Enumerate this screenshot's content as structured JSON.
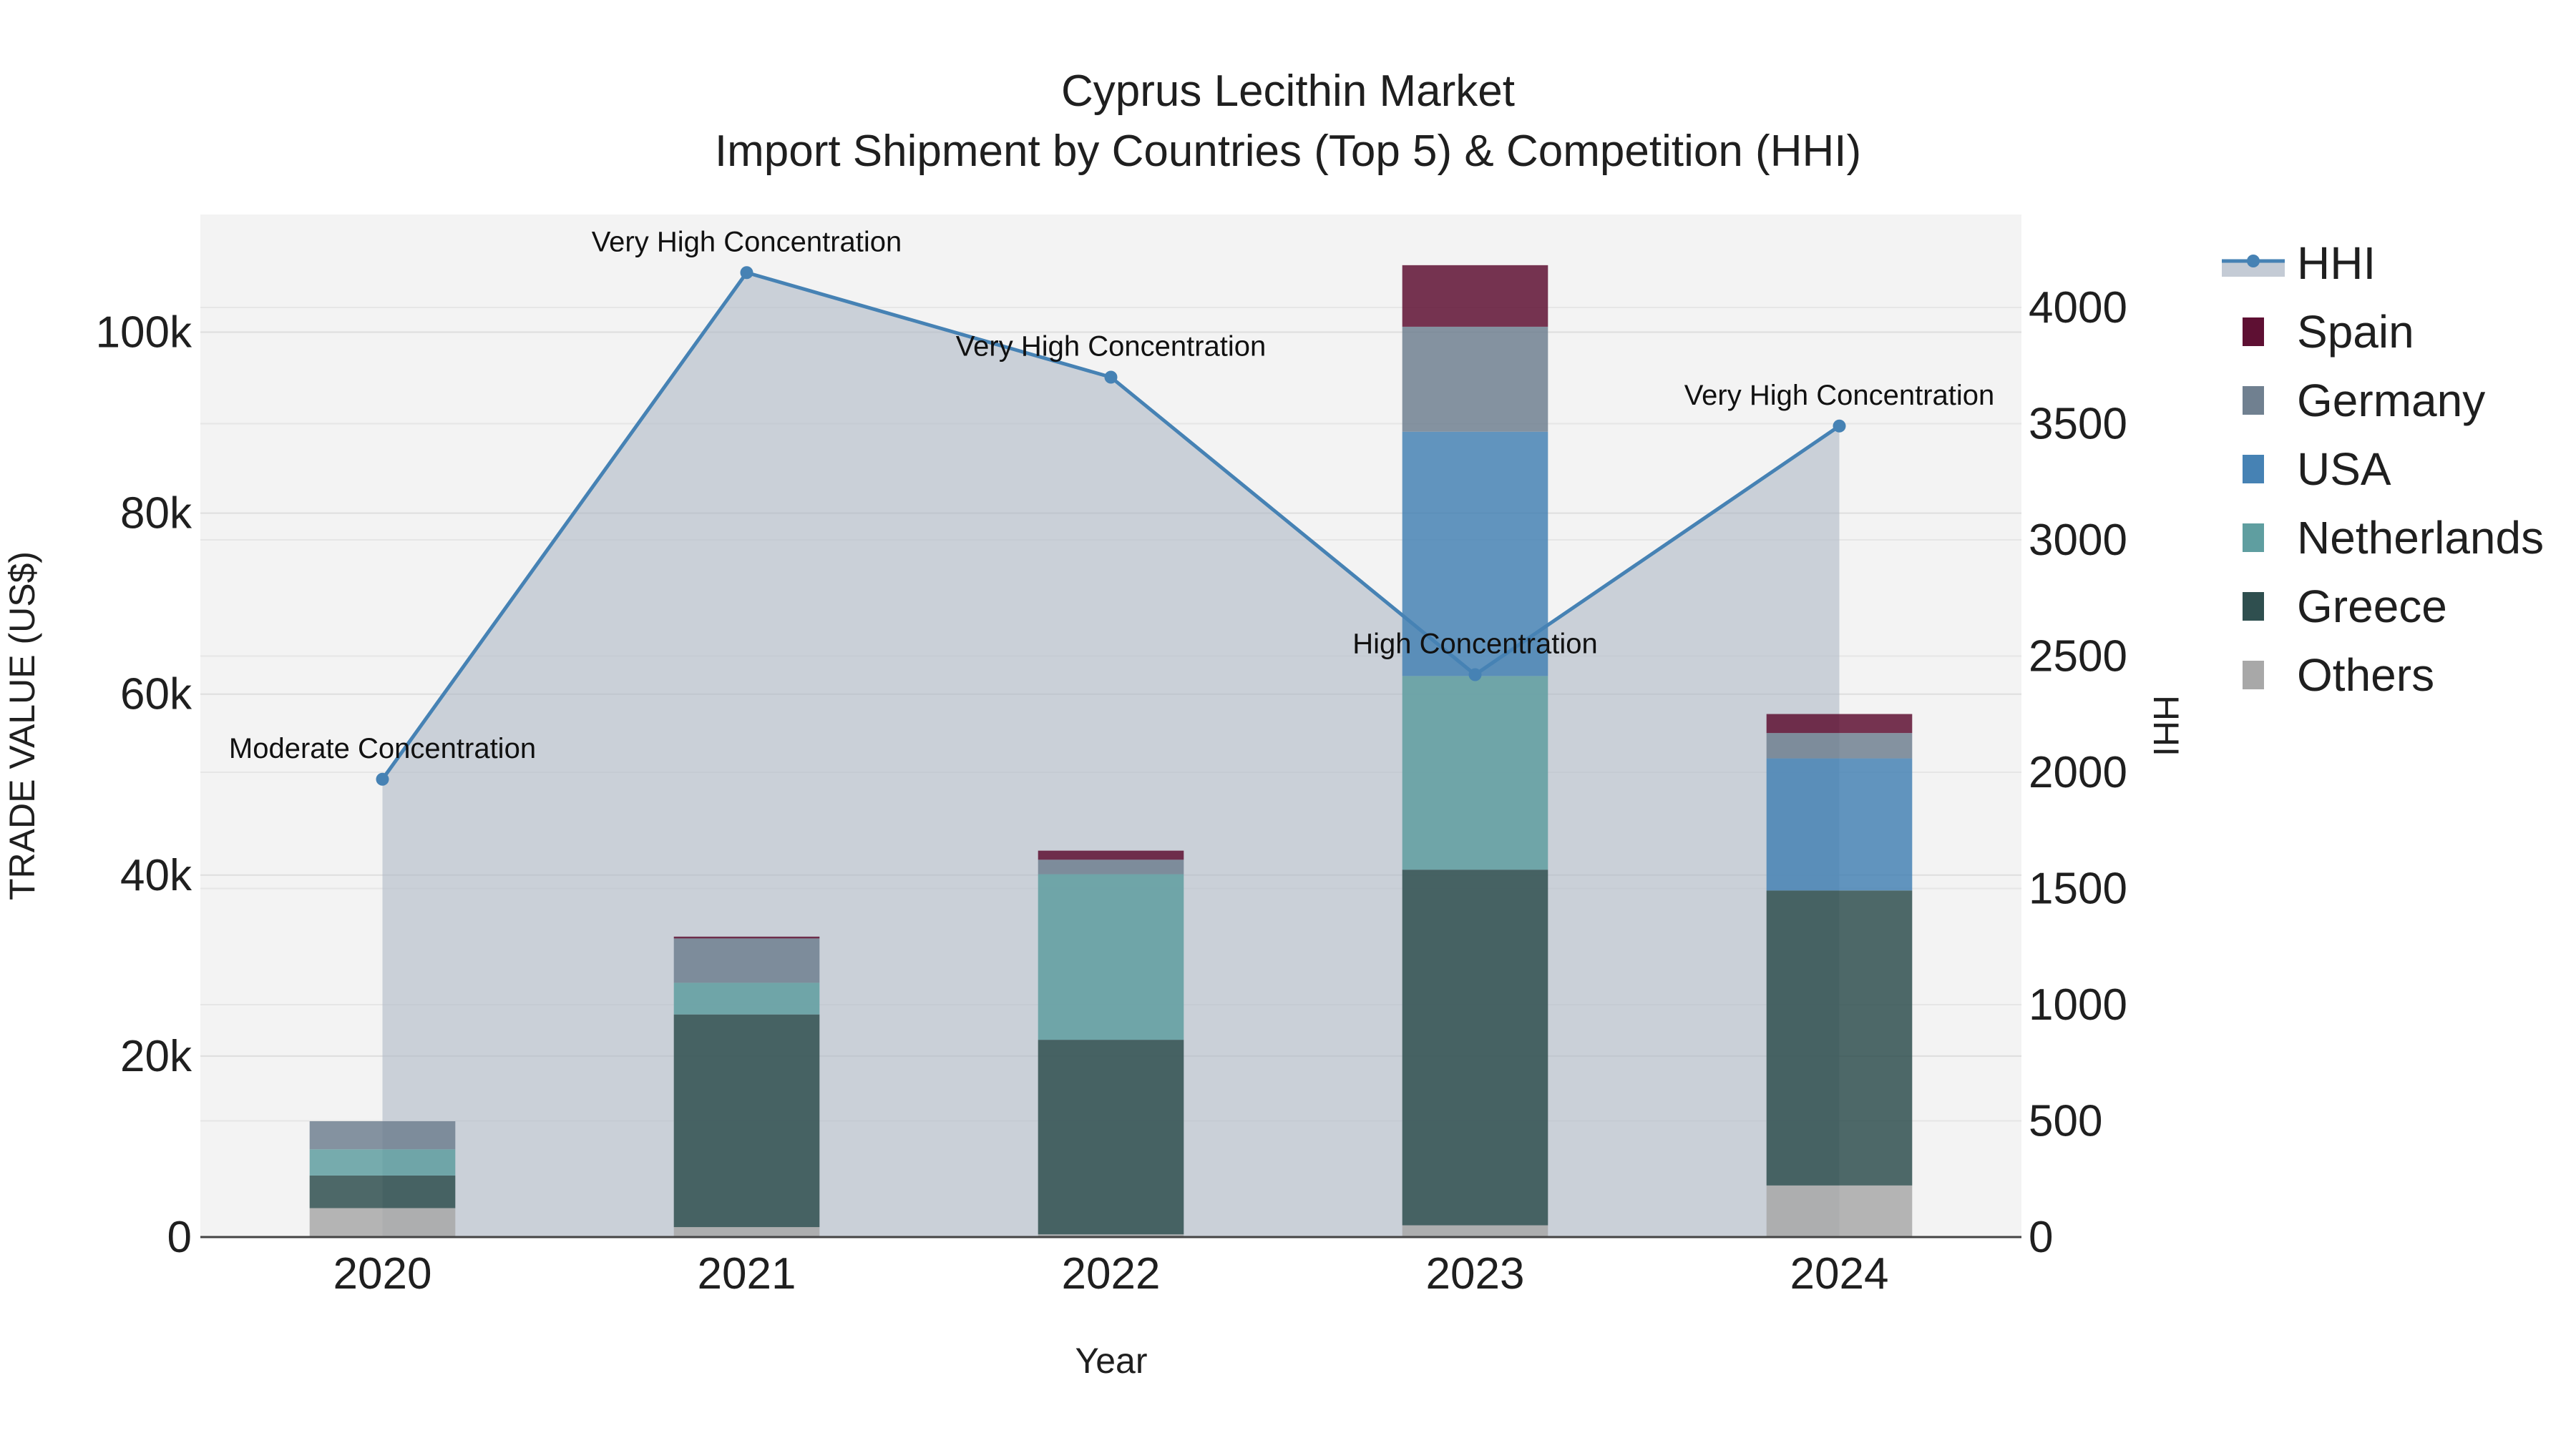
{
  "chart_data": {
    "type": "bar",
    "title": "Cyprus Lecithin Market",
    "subtitle": "Import Shipment by Countries (Top 5) & Competition (HHI)",
    "xlabel": "Year",
    "ylabel": "TRADE VALUE (US$)",
    "y2label": "HHI",
    "categories": [
      "2020",
      "2021",
      "2022",
      "2023",
      "2024"
    ],
    "ylim": [
      0,
      113000
    ],
    "y2lim": [
      0,
      4400
    ],
    "yticks": [
      {
        "value": 0,
        "label": "0"
      },
      {
        "value": 20000,
        "label": "20k"
      },
      {
        "value": 40000,
        "label": "40k"
      },
      {
        "value": 60000,
        "label": "60k"
      },
      {
        "value": 80000,
        "label": "80k"
      },
      {
        "value": 100000,
        "label": "100k"
      }
    ],
    "y2ticks": [
      {
        "value": 0,
        "label": "0"
      },
      {
        "value": 500,
        "label": "500"
      },
      {
        "value": 1000,
        "label": "1000"
      },
      {
        "value": 1500,
        "label": "1500"
      },
      {
        "value": 2000,
        "label": "2000"
      },
      {
        "value": 2500,
        "label": "2500"
      },
      {
        "value": 3000,
        "label": "3000"
      },
      {
        "value": 3500,
        "label": "3500"
      },
      {
        "value": 4000,
        "label": "4000"
      }
    ],
    "series": [
      {
        "name": "Others",
        "color": "#a8a8a8",
        "values": [
          3200,
          1100,
          300,
          1300,
          5700
        ]
      },
      {
        "name": "Greece",
        "color": "#2f4f4f",
        "values": [
          3600,
          23500,
          21500,
          39300,
          32600
        ]
      },
      {
        "name": "Netherlands",
        "color": "#5f9ea0",
        "values": [
          2900,
          3500,
          18300,
          21400,
          0
        ]
      },
      {
        "name": "USA",
        "color": "#4682b4",
        "values": [
          0,
          0,
          0,
          27000,
          14600
        ]
      },
      {
        "name": "Germany",
        "color": "#708090",
        "values": [
          3100,
          4900,
          1600,
          11600,
          2800
        ]
      },
      {
        "name": "Spain",
        "color": "#5e1033",
        "values": [
          0,
          200,
          1000,
          6800,
          2100
        ]
      }
    ],
    "hhi": {
      "name": "HHI",
      "color": "#4682b4",
      "values": [
        1970,
        4150,
        3700,
        2420,
        3490
      ],
      "annotations": [
        "Moderate Concentration",
        "Very High Concentration",
        "Very High Concentration",
        "High Concentration",
        "Very High Concentration"
      ]
    },
    "legend": [
      "HHI",
      "Spain",
      "Germany",
      "USA",
      "Netherlands",
      "Greece",
      "Others"
    ],
    "legend_position": "top-right"
  }
}
